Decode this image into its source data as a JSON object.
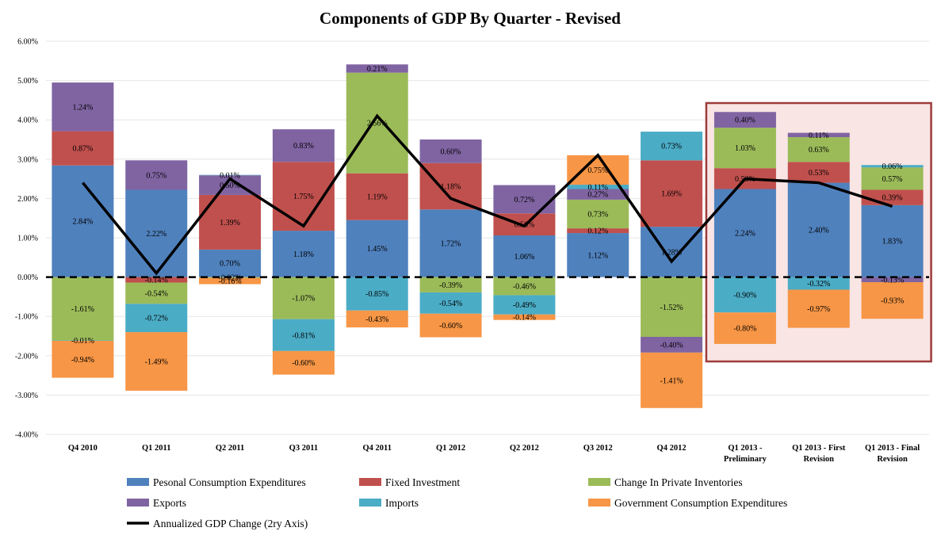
{
  "chart_data": {
    "type": "bar",
    "stacked": true,
    "title": "Components of  GDP By Quarter - Revised",
    "ylim": [
      -4,
      6
    ],
    "yticks": [
      6,
      5,
      4,
      3,
      2,
      1,
      0,
      -1,
      -2,
      -3,
      -4
    ],
    "ytick_labels": [
      "6.00%",
      "5.00%",
      "4.00%",
      "3.00%",
      "2.00%",
      "1.00%",
      "0.00%",
      "-1.00%",
      "-2.00%",
      "-3.00%",
      "-4.00%"
    ],
    "categories": [
      [
        "Q4 2010"
      ],
      [
        "Q1 2011"
      ],
      [
        "Q2 2011"
      ],
      [
        "Q3 2011"
      ],
      [
        "Q4 2011"
      ],
      [
        "Q1 2012"
      ],
      [
        "Q2 2012"
      ],
      [
        "Q3 2012"
      ],
      [
        "Q4 2012"
      ],
      [
        "Q1 2013 -",
        "Preliminary"
      ],
      [
        "Q1 2013 - First",
        "Revision"
      ],
      [
        "Q1 2013 - Final",
        "Revision"
      ]
    ],
    "series": [
      {
        "name": "Pesonal Consumption Expenditures",
        "color": "#4f81bd",
        "values": [
          2.84,
          2.22,
          0.7,
          1.18,
          1.45,
          1.72,
          1.06,
          1.12,
          1.28,
          2.24,
          2.4,
          1.83
        ],
        "labels": [
          "2.84%",
          "2.22%",
          "0.70%",
          "1.18%",
          "1.45%",
          "1.72%",
          "1.06%",
          "1.12%",
          "1.28%",
          "2.24%",
          "2.40%",
          "1.83%"
        ]
      },
      {
        "name": "Fixed Investment",
        "color": "#c0504d",
        "values": [
          0.87,
          -0.14,
          1.39,
          1.75,
          1.19,
          1.18,
          0.56,
          0.12,
          1.69,
          0.53,
          0.53,
          0.39
        ],
        "labels": [
          "0.87%",
          "-0.14%",
          "1.39%",
          "1.75%",
          "1.19%",
          "1.18%",
          "0.56%",
          "0.12%",
          "1.69%",
          "0.53%",
          "0.53%",
          "0.39%"
        ]
      },
      {
        "name": "Change In Private Inventories",
        "color": "#9bbb59",
        "values": [
          -1.61,
          -0.54,
          -0.02,
          -1.07,
          2.56,
          -0.39,
          -0.46,
          0.73,
          -1.52,
          1.03,
          0.63,
          0.57
        ],
        "labels": [
          "-1.61%",
          "-0.54%",
          "-0.02%",
          "-1.07%",
          "2.56%",
          "-0.39%",
          "-0.46%",
          "0.73%",
          "-1.52%",
          "1.03%",
          "0.63%",
          "0.57%"
        ]
      },
      {
        "name": "Exports",
        "color": "#8064a2",
        "values": [
          1.24,
          0.75,
          0.5,
          0.83,
          0.21,
          0.6,
          0.72,
          0.27,
          -0.4,
          0.4,
          0.11,
          -0.13
        ],
        "labels": [
          "1.24%",
          "0.75%",
          "0.50%",
          "0.83%",
          "0.21%",
          "0.60%",
          "0.72%",
          "0.27%",
          "-0.40%",
          "0.40%",
          "0.11%",
          "-0.13%"
        ]
      },
      {
        "name": "Imports",
        "color": "#4bacc6",
        "values": [
          -0.01,
          -0.72,
          0.01,
          -0.81,
          -0.85,
          -0.54,
          -0.49,
          0.11,
          0.73,
          -0.9,
          -0.32,
          0.06
        ],
        "labels": [
          "-0.01%",
          "-0.72%",
          "0.01%",
          "-0.81%",
          "-0.85%",
          "-0.54%",
          "-0.49%",
          "0.11%",
          "0.73%",
          "-0.90%",
          "-0.32%",
          "0.06%"
        ]
      },
      {
        "name": "Government Consumption Expenditures",
        "color": "#f79646",
        "values": [
          -0.94,
          -1.49,
          -0.16,
          -0.6,
          -0.43,
          -0.6,
          -0.14,
          0.75,
          -1.41,
          -0.8,
          -0.97,
          -0.93
        ],
        "labels": [
          "-0.94%",
          "-1.49%",
          "-0.16%",
          "-0.60%",
          "-0.43%",
          "-0.60%",
          "-0.14%",
          "0.75%",
          "-1.41%",
          "-0.80%",
          "-0.97%",
          "-0.93%"
        ]
      }
    ],
    "line_series": {
      "name": "Annualized GDP Change (2ry Axis)",
      "color": "#000000",
      "values": [
        2.4,
        0.1,
        2.5,
        1.3,
        4.1,
        2.0,
        1.3,
        3.1,
        0.4,
        2.5,
        2.4,
        1.8
      ]
    },
    "zero_line": "dashed",
    "highlight": {
      "from_category": 9,
      "to_category": 11,
      "color": "#9e3b3b"
    },
    "legend_position": "bottom"
  }
}
